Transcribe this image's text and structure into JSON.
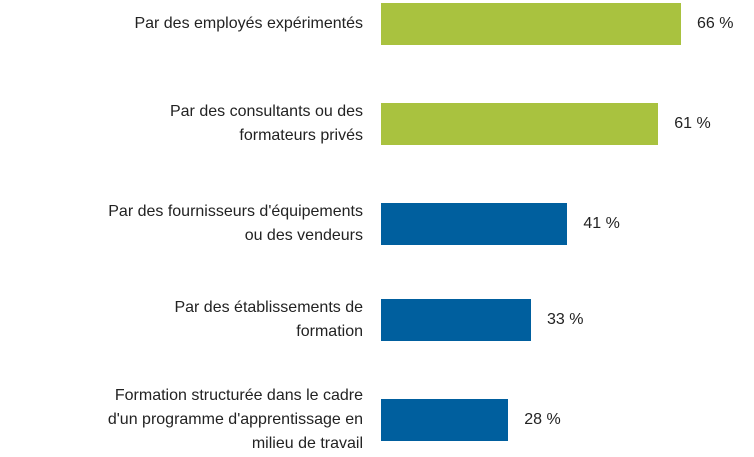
{
  "chart_data": {
    "type": "bar",
    "orientation": "horizontal",
    "categories": [
      "Par des employés expérimentés",
      "Par des consultants ou des\nformateurs privés",
      "Par des fournisseurs d'équipements\nou des vendeurs",
      "Par des établissements de\nformation",
      "Formation structurée dans le cadre\nd'un programme d'apprentissage en\nmilieu de travail"
    ],
    "values": [
      66,
      61,
      41,
      33,
      28
    ],
    "value_labels": [
      "66 %",
      "61 %",
      "41 %",
      "33 %",
      "28 %"
    ],
    "colors": [
      "#a9c23f",
      "#a9c23f",
      "#005f9e",
      "#005f9e",
      "#005f9e"
    ]
  }
}
